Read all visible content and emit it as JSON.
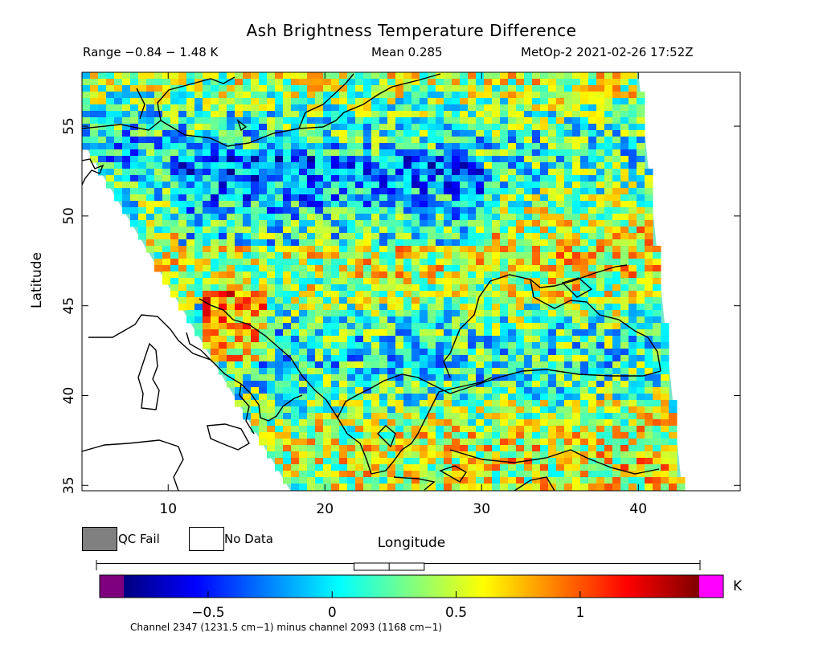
{
  "header": {
    "title": "Ash Brightness Temperature Difference",
    "range_text": "Range −0.84 − 1.48 K",
    "mean_text": "Mean 0.285",
    "satellite_text": "MetOp-2 2021-02-26 17:52Z"
  },
  "legend": {
    "qc_fail_label": "QC Fail",
    "qc_fail_color": "#808080",
    "no_data_label": "No Data",
    "no_data_color": "#ffffff"
  },
  "colorbar": {
    "unit": "K",
    "min": -0.84,
    "max": 1.48,
    "ticks": [
      "−0.5",
      "0",
      "0.5",
      "1"
    ],
    "tick_values": [
      -0.5,
      0,
      0.5,
      1
    ],
    "under_color": "#7f007f",
    "over_color": "#ff00ff",
    "stops": [
      "#00007f",
      "#0000ff",
      "#0080ff",
      "#00ffff",
      "#80ff80",
      "#ffff00",
      "#ff8000",
      "#ff0000",
      "#7f0000"
    ],
    "boxplot": {
      "whisker_min": -0.84,
      "q1": 0.15,
      "median": 0.285,
      "q3": 0.42,
      "whisker_max": 1.48
    }
  },
  "footnote": "Channel 2347 (1231.5 cm−1) minus channel 2093 (1168 cm−1)",
  "chart_data": {
    "type": "heatmap",
    "title": "Ash Brightness Temperature Difference",
    "xlabel": "Longitude",
    "ylabel": "Latitude",
    "xlim": [
      4.5,
      46.5
    ],
    "ylim": [
      34.7,
      58
    ],
    "xticks": [
      10,
      20,
      30,
      40
    ],
    "yticks": [
      35,
      40,
      45,
      50,
      55
    ],
    "value_unit": "K",
    "value_range": [
      -0.84,
      1.48
    ],
    "mean": 0.285,
    "colorscale": "rainbow",
    "swath_corners": [
      {
        "lon": 4.5,
        "lat": 58
      },
      {
        "lon": 40.0,
        "lat": 58
      },
      {
        "lon": 42.8,
        "lat": 34.7
      },
      {
        "lon": 17.8,
        "lat": 34.7
      },
      {
        "lon": 4.5,
        "lat": 54.2
      }
    ]
  }
}
